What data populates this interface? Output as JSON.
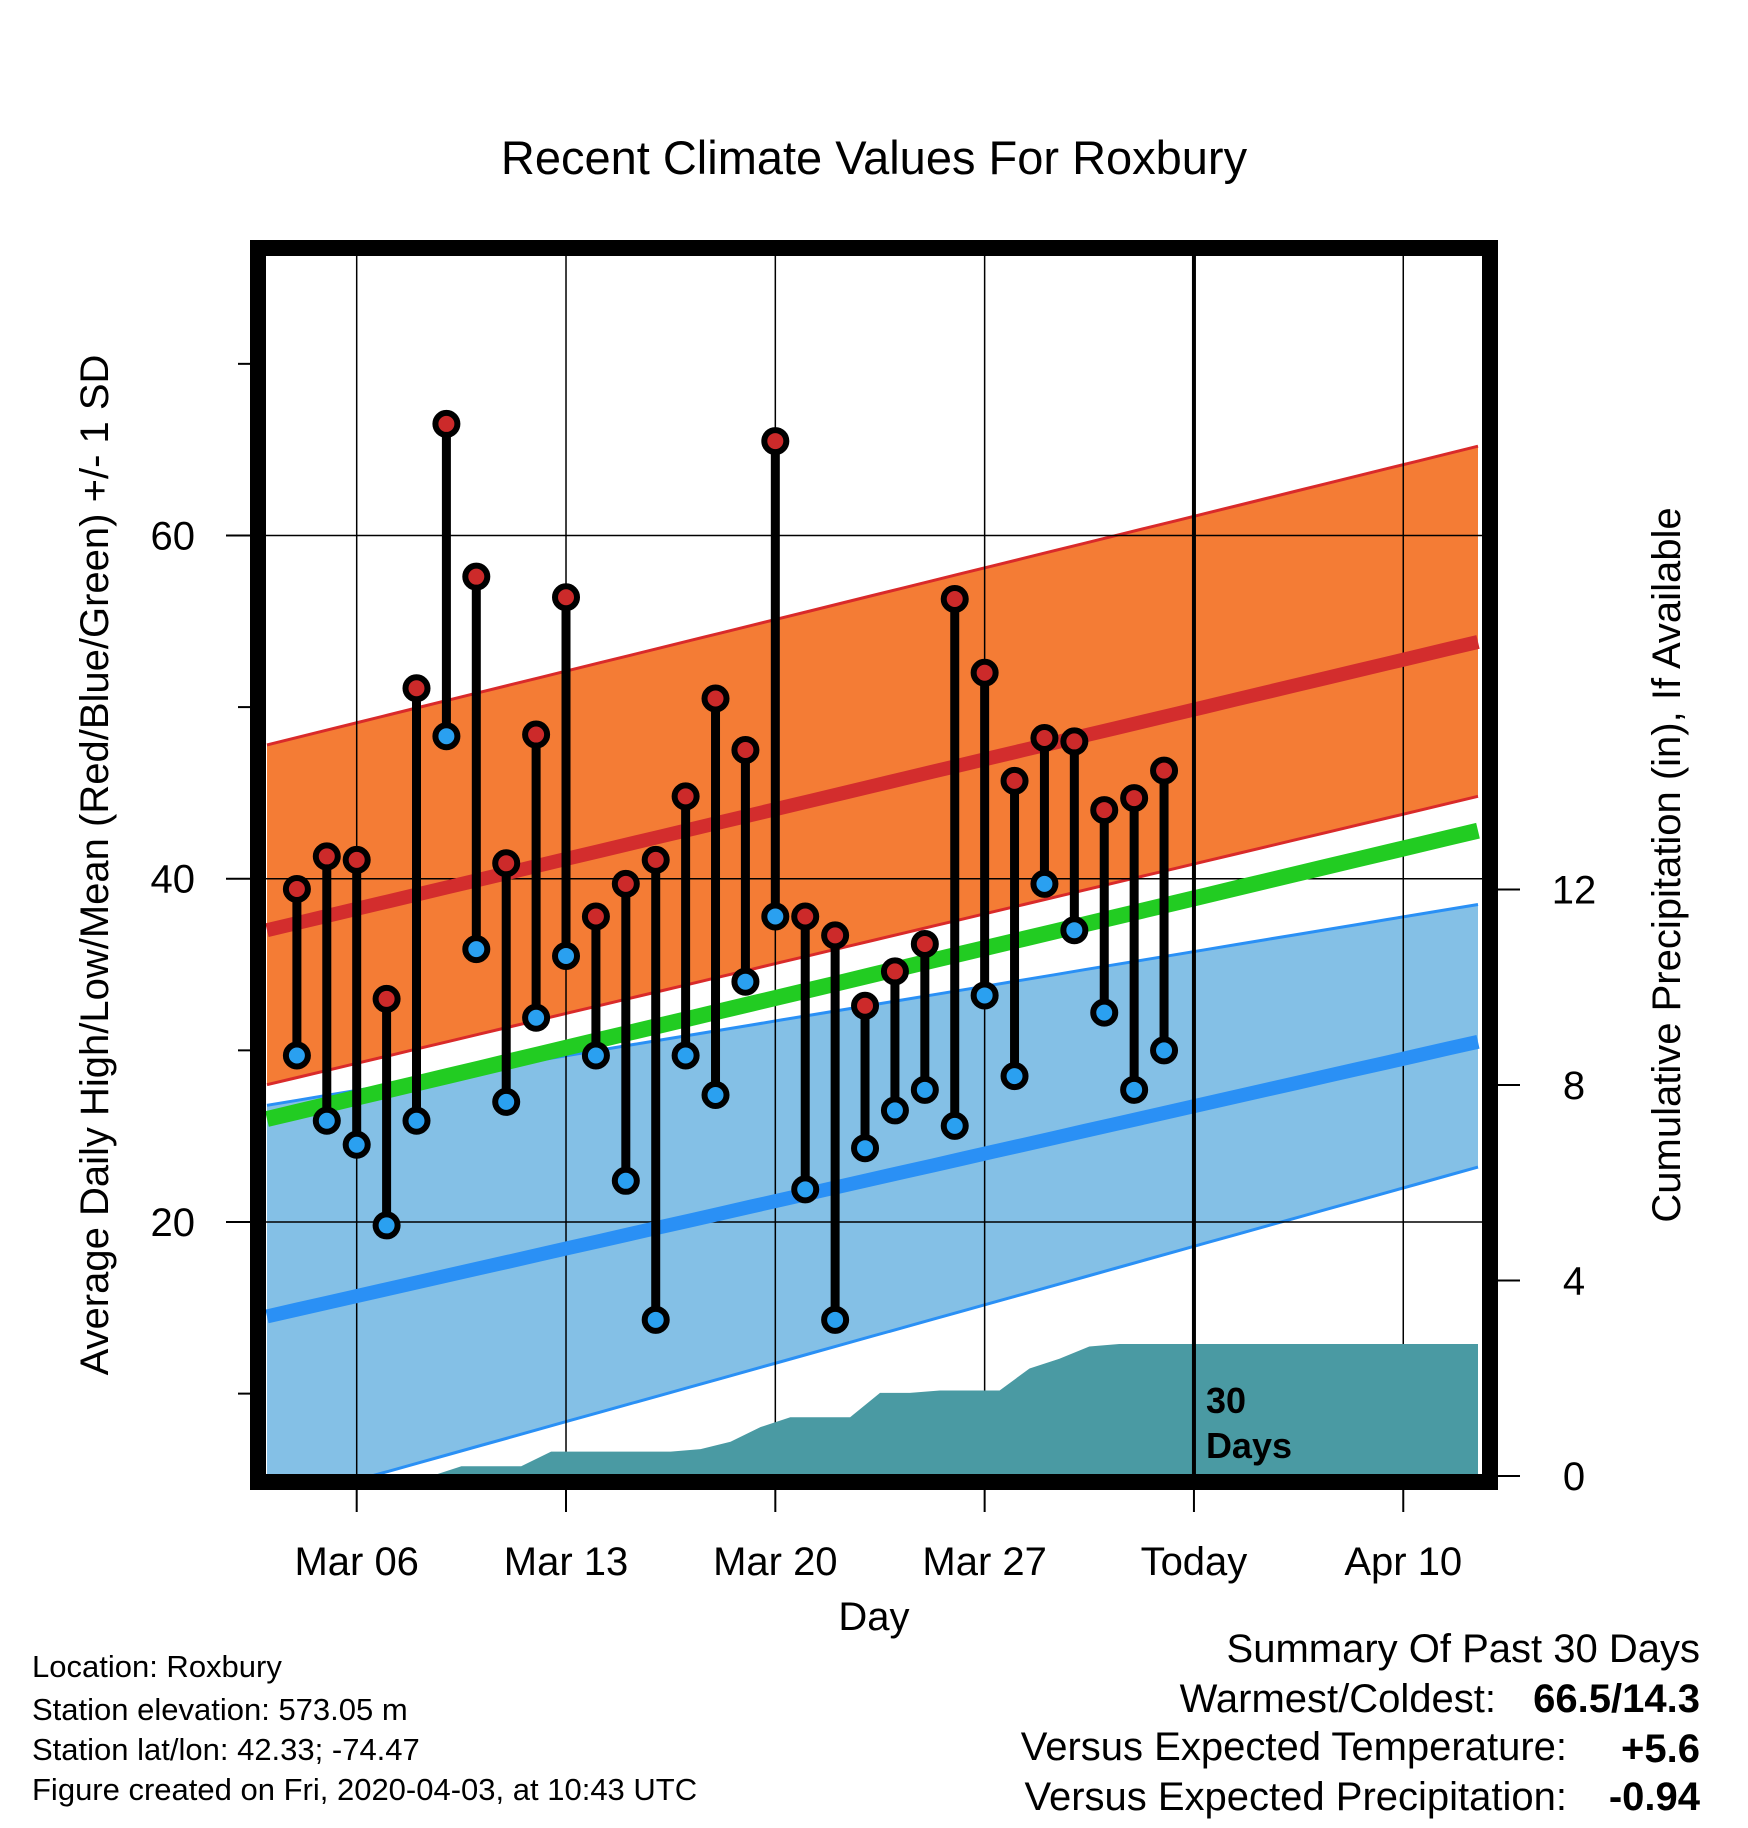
{
  "chart_data": {
    "type": "line",
    "title": "Recent Climate Values For Roxbury",
    "xlabel": "Day",
    "ylabel_left": "Average Daily High/Low/Mean (Red/Blue/Green) +/- 1 SD",
    "ylabel_right": "Cumulative Precipitation (in), If Available",
    "x_ticks": [
      {
        "day": 5,
        "label": "Mar 06"
      },
      {
        "day": 12,
        "label": "Mar 13"
      },
      {
        "day": 19,
        "label": "Mar 20"
      },
      {
        "day": 26,
        "label": "Mar 27"
      },
      {
        "day": 33,
        "label": "Today"
      },
      {
        "day": 40,
        "label": "Apr 10"
      }
    ],
    "xlim": [
      1.9,
      42.7
    ],
    "ylim_left": [
      5.2,
      76.4
    ],
    "yticks_left_major": [
      20,
      40,
      60
    ],
    "yticks_left_minor": [
      10,
      30,
      50,
      70
    ],
    "ylim_right": [
      0,
      25
    ],
    "yticks_right": [
      0,
      4,
      8,
      12
    ],
    "today_day": 33,
    "today_annotation": [
      "30",
      "Days"
    ],
    "grid": true,
    "normals": {
      "days": [
        2,
        42.5
      ],
      "high_mean": [
        37.0,
        53.8
      ],
      "high_upper": [
        47.8,
        65.2
      ],
      "high_lower": [
        28.0,
        44.8
      ],
      "mean": [
        26.0,
        42.8
      ],
      "low_mean": [
        14.5,
        30.5
      ],
      "low_upper": [
        26.8,
        38.5
      ],
      "low_lower": [
        3.5,
        23.2
      ]
    },
    "series": [
      {
        "name": "High",
        "color": "#cc2a2a",
        "days": [
          3,
          4,
          5,
          6,
          7,
          8,
          9,
          10,
          11,
          12,
          13,
          14,
          15,
          16,
          17,
          18,
          19,
          20,
          21,
          22,
          23,
          24,
          25,
          26,
          27,
          28,
          29,
          30,
          31,
          32
        ],
        "values": [
          39.4,
          41.3,
          41.1,
          33.0,
          51.1,
          66.5,
          57.6,
          40.9,
          48.4,
          56.4,
          37.8,
          39.7,
          41.1,
          44.8,
          50.5,
          47.5,
          65.5,
          37.8,
          36.7,
          32.6,
          34.6,
          36.2,
          56.3,
          52.0,
          45.7,
          48.2,
          48.0,
          44.0,
          44.7,
          46.3
        ]
      },
      {
        "name": "Low",
        "color": "#2aa0f0",
        "days": [
          3,
          4,
          5,
          6,
          7,
          8,
          9,
          10,
          11,
          12,
          13,
          14,
          15,
          16,
          17,
          18,
          19,
          20,
          21,
          22,
          23,
          24,
          25,
          26,
          27,
          28,
          29,
          30,
          31,
          32
        ],
        "values": [
          29.7,
          25.9,
          24.5,
          19.8,
          25.9,
          48.3,
          35.9,
          27.0,
          31.9,
          35.5,
          29.7,
          22.4,
          14.3,
          29.7,
          27.4,
          34.0,
          37.8,
          21.9,
          14.3,
          24.3,
          26.5,
          27.7,
          25.6,
          33.2,
          28.5,
          39.7,
          37.0,
          32.2,
          27.7,
          30.0
        ]
      },
      {
        "name": "Cumulative Precipitation",
        "color": "#4a9aa3",
        "days": [
          5.5,
          6.5,
          7.5,
          8.5,
          9.5,
          10.5,
          11.5,
          12.5,
          13.5,
          14.5,
          15.5,
          16.5,
          17.5,
          18.5,
          19.5,
          20.5,
          21.5,
          22.5,
          23.5,
          24.5,
          25.5,
          26.5,
          27.5,
          28.5,
          29.5,
          30.5,
          31.5,
          32.5,
          33.5,
          42.5
        ],
        "values": [
          0,
          0,
          0,
          0.2,
          0.2,
          0.2,
          0.5,
          0.5,
          0.5,
          0.5,
          0.5,
          0.55,
          0.7,
          1.0,
          1.2,
          1.2,
          1.2,
          1.7,
          1.7,
          1.75,
          1.75,
          1.75,
          2.2,
          2.4,
          2.65,
          2.7,
          2.7,
          2.7,
          2.7,
          2.7
        ]
      }
    ]
  },
  "footer": {
    "location": "Location: Roxbury",
    "elevation": "Station elevation: 573.05 m",
    "latlon": "Station lat/lon: 42.33; -74.47",
    "created": "Figure created on Fri, 2020-04-03, at 10:43 UTC"
  },
  "summary": {
    "heading": "Summary Of Past 30 Days",
    "warm_cold_label": "Warmest/Coldest:",
    "warm_cold_value": "66.5/14.3",
    "temp_label": "Versus Expected Temperature:",
    "temp_value": "+5.6",
    "temp_color": "#cc2a2a",
    "precip_label": "Versus Expected Precipitation:",
    "precip_value": "-0.94",
    "precip_color": "#a0522d"
  },
  "colors": {
    "high_band": "#f47c35",
    "high_line": "#d32d2d",
    "mean_line": "#22cc22",
    "low_band": "#84c0e6",
    "low_line": "#2a90f5",
    "precip_fill": "#4a9aa3"
  }
}
